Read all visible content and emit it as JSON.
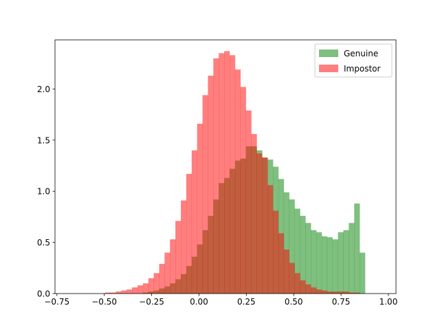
{
  "chart_data": {
    "type": "bar",
    "title": "",
    "xlabel": "",
    "ylabel": "",
    "xlim": [
      -0.76,
      1.04
    ],
    "ylim": [
      0,
      2.48
    ],
    "xticks": [
      -0.75,
      -0.5,
      -0.25,
      0.0,
      0.25,
      0.5,
      0.75,
      1.0
    ],
    "xtick_labels": [
      "−0.75",
      "−0.50",
      "−0.25",
      "0.00",
      "0.25",
      "0.50",
      "0.75",
      "1.00"
    ],
    "yticks": [
      0.0,
      0.5,
      1.0,
      1.5,
      2.0
    ],
    "ytick_labels": [
      "0.0",
      "0.5",
      "1.0",
      "1.5",
      "2.0"
    ],
    "grid": false,
    "legend_position": "upper right",
    "bins": {
      "start": -0.725,
      "width": 0.0286,
      "count": 60
    },
    "series": [
      {
        "name": "Genuine",
        "color": "#008000",
        "opacity": 0.5,
        "values": [
          0.0,
          0.0,
          0.0,
          0.0,
          0.0,
          0.0,
          0.0,
          0.0,
          0.0,
          0.0,
          0.0,
          0.0,
          0.0,
          0.0,
          0.0,
          0.01,
          0.02,
          0.03,
          0.05,
          0.07,
          0.1,
          0.14,
          0.19,
          0.27,
          0.36,
          0.48,
          0.62,
          0.76,
          0.92,
          1.08,
          1.13,
          1.22,
          1.3,
          1.32,
          1.44,
          1.44,
          1.4,
          1.33,
          1.31,
          1.24,
          1.12,
          0.99,
          0.92,
          0.83,
          0.76,
          0.69,
          0.62,
          0.6,
          0.56,
          0.55,
          0.53,
          0.6,
          0.62,
          0.69,
          0.88,
          0.4,
          0.0,
          0.0,
          0.0,
          0.0
        ]
      },
      {
        "name": "Impostor",
        "color": "#ff0000",
        "opacity": 0.5,
        "values": [
          0.0,
          0.0,
          0.0,
          0.0,
          0.0,
          0.0,
          0.0,
          0.0,
          0.01,
          0.01,
          0.02,
          0.03,
          0.04,
          0.06,
          0.08,
          0.1,
          0.15,
          0.2,
          0.29,
          0.4,
          0.53,
          0.71,
          0.91,
          1.17,
          1.4,
          1.66,
          1.94,
          2.13,
          2.3,
          2.35,
          2.37,
          2.33,
          2.19,
          2.02,
          1.79,
          1.56,
          1.37,
          1.33,
          1.06,
          0.81,
          0.59,
          0.43,
          0.3,
          0.2,
          0.13,
          0.09,
          0.06,
          0.04,
          0.03,
          0.02,
          0.02,
          0.02,
          0.02,
          0.01,
          0.01,
          0.0,
          0.0,
          0.0,
          0.0,
          0.0
        ]
      }
    ]
  }
}
